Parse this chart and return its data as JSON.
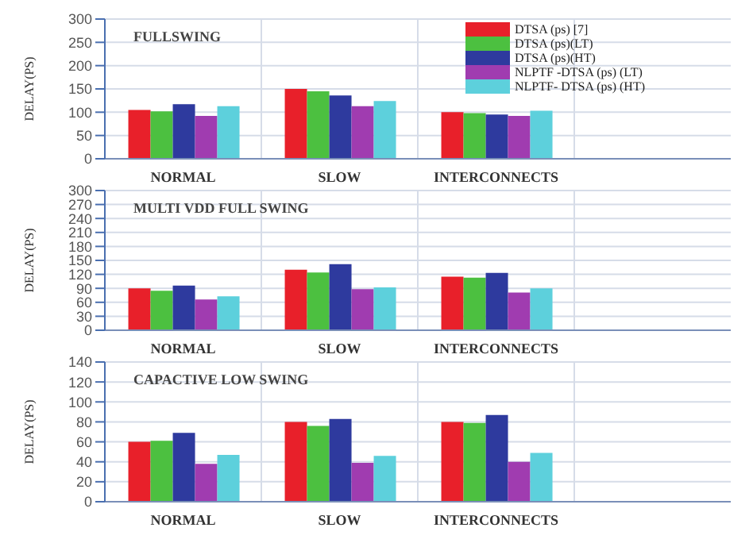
{
  "chart_data": [
    {
      "type": "bar",
      "title": "FULLSWING",
      "ylabel": "DELAY(PS)",
      "categories": [
        "NORMAL",
        "SLOW",
        "INTERCONNECTS",
        null
      ],
      "ylim": [
        0,
        300
      ],
      "yticks": [
        0,
        50,
        100,
        150,
        200,
        250,
        300
      ],
      "grid": true,
      "legend": "top right",
      "series": [
        {
          "name": "DTSA (ps) [7]",
          "color": "#e8202a",
          "values": [
            105,
            150,
            100,
            null
          ]
        },
        {
          "name": "DTSA (ps)(LT)",
          "color": "#4cc040",
          "values": [
            102,
            145,
            98,
            null
          ]
        },
        {
          "name": "DTSA (ps)(HT)",
          "color": "#2e3a9e",
          "values": [
            117,
            136,
            95,
            null
          ]
        },
        {
          "name": "NLPTF -DTSA (ps) (LT)",
          "color": "#a03cb0",
          "values": [
            92,
            113,
            92,
            null
          ]
        },
        {
          "name": "NLPTF- DTSA (ps) (HT)",
          "color": "#5dd0dc",
          "values": [
            113,
            124,
            103,
            null
          ]
        }
      ]
    },
    {
      "type": "bar",
      "title": "MULTI VDD FULL SWING",
      "ylabel": "DELAY(PS)",
      "categories": [
        "NORMAL",
        "SLOW",
        "INTERCONNECTS",
        null
      ],
      "ylim": [
        0,
        300
      ],
      "yticks": [
        0,
        30,
        60,
        90,
        120,
        150,
        180,
        210,
        240,
        270,
        300
      ],
      "grid": true,
      "series": [
        {
          "color": "#e8202a",
          "values": [
            90,
            130,
            115,
            null
          ]
        },
        {
          "color": "#4cc040",
          "values": [
            85,
            124,
            113,
            null
          ]
        },
        {
          "color": "#2e3a9e",
          "values": [
            96,
            142,
            123,
            null
          ]
        },
        {
          "color": "#a03cb0",
          "values": [
            66,
            88,
            81,
            null
          ]
        },
        {
          "color": "#5dd0dc",
          "values": [
            73,
            92,
            90,
            null
          ]
        }
      ]
    },
    {
      "type": "bar",
      "title": "CAPACTIVE LOW SWING",
      "ylabel": "DELAY(PS)",
      "categories": [
        "NORMAL",
        "SLOW",
        "INTERCONNECTS",
        null
      ],
      "ylim": [
        0,
        140
      ],
      "yticks": [
        0,
        20,
        40,
        60,
        80,
        100,
        120,
        140
      ],
      "grid": true,
      "series": [
        {
          "color": "#e8202a",
          "values": [
            60,
            80,
            80,
            null
          ]
        },
        {
          "color": "#4cc040",
          "values": [
            61,
            76,
            79,
            null
          ]
        },
        {
          "color": "#2e3a9e",
          "values": [
            69,
            83,
            87,
            null
          ]
        },
        {
          "color": "#a03cb0",
          "values": [
            38,
            39,
            40,
            null
          ]
        },
        {
          "color": "#5dd0dc",
          "values": [
            47,
            46,
            49,
            null
          ]
        }
      ]
    }
  ]
}
